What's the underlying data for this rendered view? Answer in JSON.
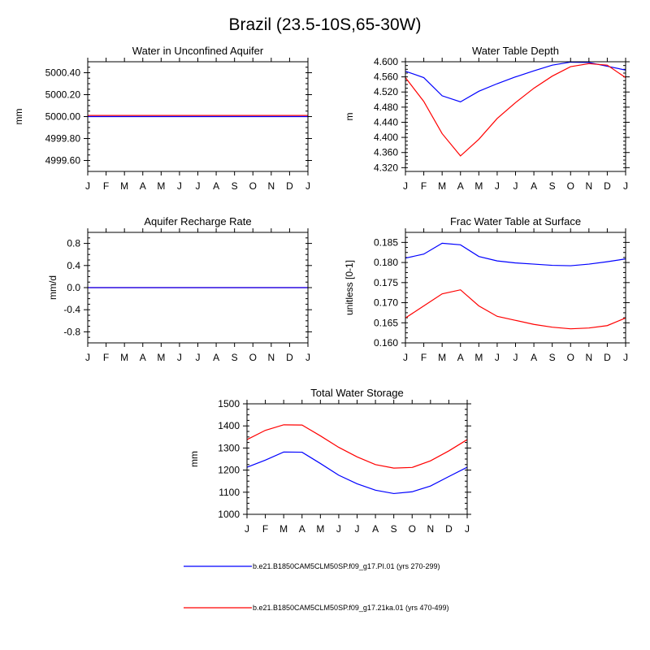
{
  "figure": {
    "title": "Brazil (23.5-10S,65-30W)",
    "series_colors": {
      "pi": "#0000ff",
      "ka21": "#ff0000"
    },
    "legend": [
      {
        "label": "b.e21.B1850CAM5CLM50SP.f09_g17.PI.01 (yrs 270-299)",
        "color": "#0000ff"
      },
      {
        "label": "b.e21.B1850CAM5CLM50SP.f09_g17.21ka.01 (yrs 470-499)",
        "color": "#ff0000"
      }
    ]
  },
  "chart_data": [
    {
      "type": "line",
      "title": "Water in Unconfined Aquifer",
      "xlabel": "",
      "ylabel": "mm",
      "x": [
        "J",
        "F",
        "M",
        "A",
        "M",
        "J",
        "J",
        "A",
        "S",
        "O",
        "N",
        "D",
        "J"
      ],
      "ylim": [
        4999.5,
        5000.5
      ],
      "yticks": [
        4999.6,
        4999.8,
        5000.0,
        5000.2,
        5000.4
      ],
      "ytick_labels": [
        "4999.60",
        "4999.80",
        "5000.00",
        "5000.20",
        "5000.40"
      ],
      "series": [
        {
          "color": "#ff0000",
          "values": [
            5000.01,
            5000.01,
            5000.01,
            5000.01,
            5000.01,
            5000.01,
            5000.01,
            5000.01,
            5000.01,
            5000.01,
            5000.01,
            5000.01,
            5000.01
          ]
        },
        {
          "color": "#0000ff",
          "values": [
            5000,
            5000,
            5000,
            5000,
            5000,
            5000,
            5000,
            5000,
            5000,
            5000,
            5000,
            5000,
            5000
          ]
        }
      ]
    },
    {
      "type": "line",
      "title": "Water Table Depth",
      "xlabel": "",
      "ylabel": "m",
      "x": [
        "J",
        "F",
        "M",
        "A",
        "M",
        "J",
        "J",
        "A",
        "S",
        "O",
        "N",
        "D",
        "J"
      ],
      "ylim": [
        4.31,
        4.6
      ],
      "yticks": [
        4.32,
        4.36,
        4.4,
        4.44,
        4.48,
        4.52,
        4.56,
        4.6
      ],
      "ytick_labels": [
        "4.320",
        "4.360",
        "4.400",
        "4.440",
        "4.480",
        "4.520",
        "4.560",
        "4.600"
      ],
      "series": [
        {
          "color": "#0000ff",
          "values": [
            4.575,
            4.558,
            4.51,
            4.494,
            4.522,
            4.542,
            4.56,
            4.576,
            4.591,
            4.599,
            4.598,
            4.588,
            4.578
          ]
        },
        {
          "color": "#ff0000",
          "values": [
            4.558,
            4.495,
            4.41,
            4.351,
            4.395,
            4.45,
            4.492,
            4.53,
            4.562,
            4.587,
            4.595,
            4.591,
            4.558
          ]
        }
      ]
    },
    {
      "type": "line",
      "title": "Aquifer Recharge Rate",
      "xlabel": "",
      "ylabel": "mm/d",
      "x": [
        "J",
        "F",
        "M",
        "A",
        "M",
        "J",
        "J",
        "A",
        "S",
        "O",
        "N",
        "D",
        "J"
      ],
      "ylim": [
        -1.0,
        1.0
      ],
      "yticks": [
        -0.8,
        -0.4,
        0.0,
        0.4,
        0.8
      ],
      "ytick_labels": [
        "-0.8",
        "-0.4",
        "0.0",
        "0.4",
        "0.8"
      ],
      "series": [
        {
          "color": "#ff0000",
          "values": [
            0,
            0,
            0,
            0,
            0,
            0,
            0,
            0,
            0,
            0,
            0,
            0,
            0
          ]
        },
        {
          "color": "#0000ff",
          "values": [
            0,
            0,
            0,
            0,
            0,
            0,
            0,
            0,
            0,
            0,
            0,
            0,
            0
          ]
        }
      ]
    },
    {
      "type": "line",
      "title": "Frac Water Table at Surface",
      "xlabel": "",
      "ylabel": "unitless [0-1]",
      "x": [
        "J",
        "F",
        "M",
        "A",
        "M",
        "J",
        "J",
        "A",
        "S",
        "O",
        "N",
        "D",
        "J"
      ],
      "ylim": [
        0.16,
        0.1875
      ],
      "yticks": [
        0.16,
        0.165,
        0.17,
        0.175,
        0.18,
        0.185
      ],
      "ytick_labels": [
        "0.160",
        "0.165",
        "0.170",
        "0.175",
        "0.180",
        "0.185"
      ],
      "series": [
        {
          "color": "#0000ff",
          "values": [
            0.1811,
            0.1821,
            0.1848,
            0.1844,
            0.1815,
            0.1804,
            0.1799,
            0.1796,
            0.1793,
            0.1792,
            0.1796,
            0.1802,
            0.1809
          ]
        },
        {
          "color": "#ff0000",
          "values": [
            0.1662,
            0.1692,
            0.1722,
            0.1732,
            0.1692,
            0.1666,
            0.1656,
            0.1646,
            0.1639,
            0.1635,
            0.1637,
            0.1643,
            0.1662
          ]
        }
      ]
    },
    {
      "type": "line",
      "title": "Total Water Storage",
      "xlabel": "",
      "ylabel": "mm",
      "x": [
        "J",
        "F",
        "M",
        "A",
        "M",
        "J",
        "J",
        "A",
        "S",
        "O",
        "N",
        "D",
        "J"
      ],
      "ylim": [
        1000,
        1500
      ],
      "yticks": [
        1000,
        1100,
        1200,
        1300,
        1400,
        1500
      ],
      "ytick_labels": [
        "1000",
        "1100",
        "1200",
        "1300",
        "1400",
        "1500"
      ],
      "series": [
        {
          "color": "#0000ff",
          "values": [
            1213,
            1245,
            1282,
            1281,
            1230,
            1177,
            1138,
            1109,
            1094,
            1102,
            1128,
            1171,
            1213
          ]
        },
        {
          "color": "#ff0000",
          "values": [
            1338,
            1380,
            1405,
            1404,
            1355,
            1303,
            1260,
            1225,
            1209,
            1212,
            1242,
            1287,
            1338
          ]
        }
      ]
    }
  ]
}
